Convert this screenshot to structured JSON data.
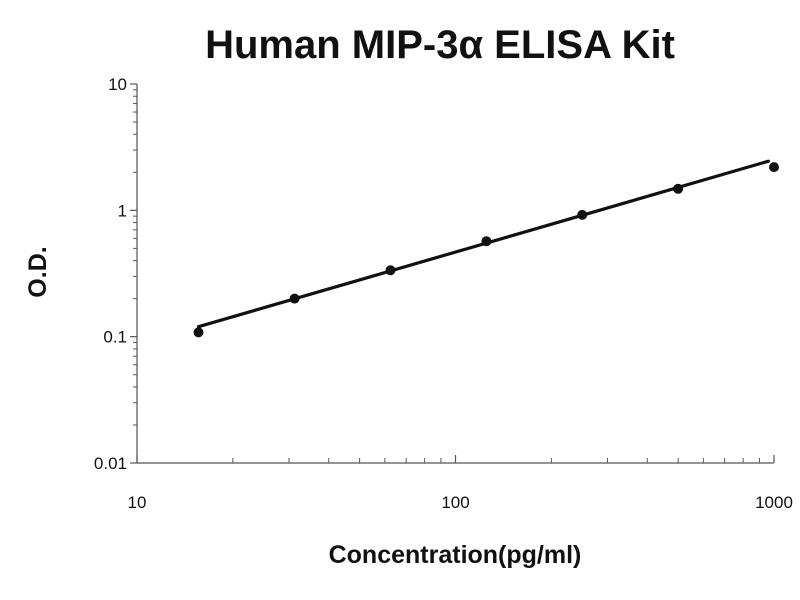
{
  "chart_data": {
    "type": "scatter",
    "title": "Human MIP-3α ELISA Kit",
    "xlabel": "Concentration(pg/ml)",
    "ylabel": "O.D.",
    "x_scale": "log",
    "y_scale": "log",
    "xlim": [
      10,
      1000
    ],
    "ylim": [
      0.01,
      10
    ],
    "x_ticks": [
      "10",
      "100",
      "1000"
    ],
    "y_ticks": [
      "10",
      "1",
      "0.1",
      "0.01"
    ],
    "grid": false,
    "legend": "none",
    "series": [
      {
        "x": [
          15.6,
          31.25,
          62.5,
          125,
          250,
          500,
          1000
        ],
        "y": [
          0.108,
          0.2,
          0.335,
          0.57,
          0.92,
          1.48,
          2.2
        ]
      }
    ],
    "trendline": {
      "type": "power",
      "x": [
        15.6,
        960
      ],
      "y": [
        0.12,
        2.45
      ]
    },
    "colors": {
      "marker": "#111111",
      "line": "#111111",
      "axis": "#555555"
    }
  }
}
